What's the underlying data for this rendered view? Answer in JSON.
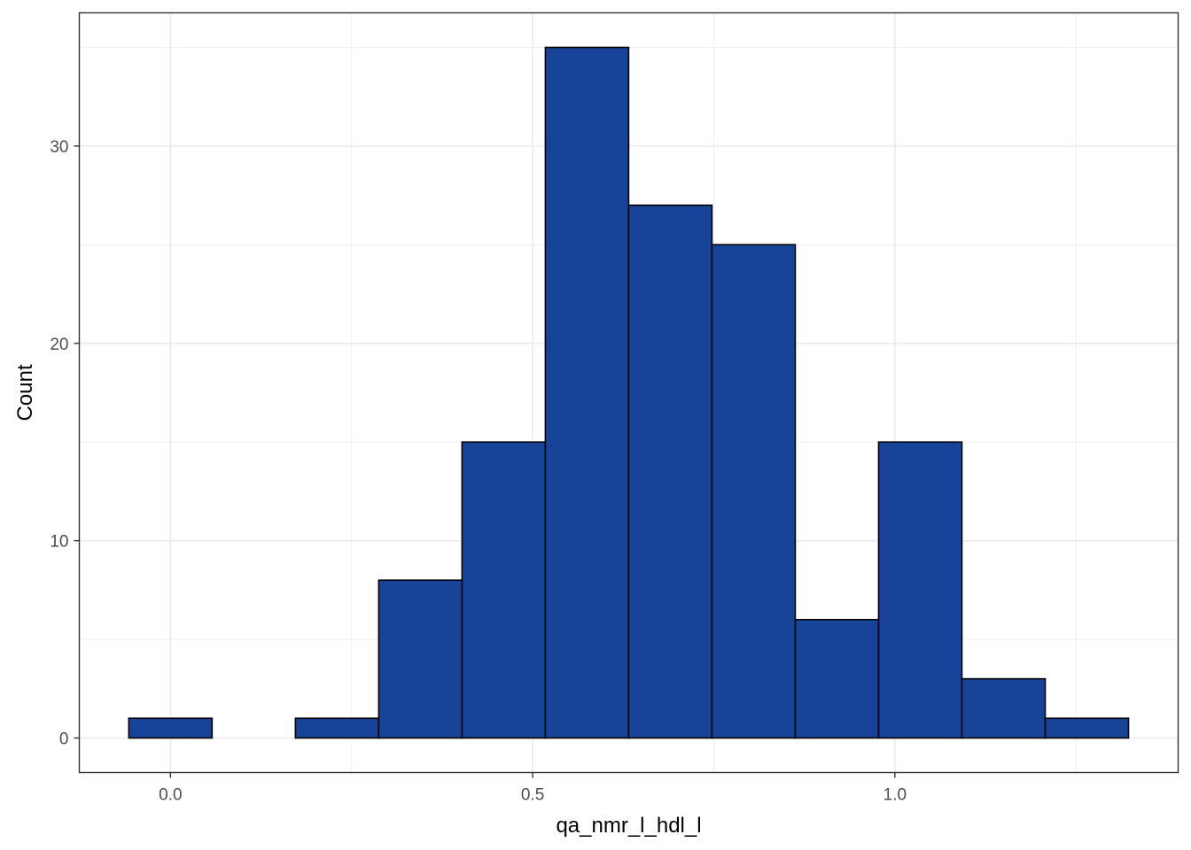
{
  "chart_data": {
    "type": "bar",
    "subtype": "histogram",
    "title": "",
    "xlabel": "qa_nmr_l_hdl_l",
    "ylabel": "Count",
    "bins": [
      {
        "x0": -0.0575,
        "x1": 0.0575,
        "count": 1
      },
      {
        "x0": 0.0575,
        "x1": 0.1725,
        "count": 0
      },
      {
        "x0": 0.1725,
        "x1": 0.2875,
        "count": 1
      },
      {
        "x0": 0.2875,
        "x1": 0.4025,
        "count": 8
      },
      {
        "x0": 0.4025,
        "x1": 0.5175,
        "count": 15
      },
      {
        "x0": 0.5175,
        "x1": 0.6325,
        "count": 35
      },
      {
        "x0": 0.6325,
        "x1": 0.7475,
        "count": 27
      },
      {
        "x0": 0.7475,
        "x1": 0.8625,
        "count": 25
      },
      {
        "x0": 0.8625,
        "x1": 0.9775,
        "count": 6
      },
      {
        "x0": 0.9775,
        "x1": 1.0925,
        "count": 15
      },
      {
        "x0": 1.0925,
        "x1": 1.2075,
        "count": 3
      },
      {
        "x0": 1.2075,
        "x1": 1.3225,
        "count": 1
      }
    ],
    "xlim": [
      -0.1258,
      1.391
    ],
    "ylim": [
      -1.75,
      36.75
    ],
    "x_ticks": [
      0.0,
      0.5,
      1.0
    ],
    "x_tick_labels": [
      "0.0",
      "0.5",
      "1.0"
    ],
    "x_minor_ticks": [
      0.25,
      0.75,
      1.25
    ],
    "y_ticks": [
      0,
      10,
      20,
      30
    ],
    "y_tick_labels": [
      "0",
      "10",
      "20",
      "30"
    ],
    "y_minor_ticks": [
      5,
      15,
      25,
      35
    ],
    "grid": true,
    "legend": "none",
    "colors": {
      "bar_fill": "#174499",
      "bar_stroke": "#000000",
      "grid": "#ebebeb",
      "panel_border": "#333333",
      "tick_label": "#4d4d4d",
      "axis_title": "#000000"
    }
  }
}
